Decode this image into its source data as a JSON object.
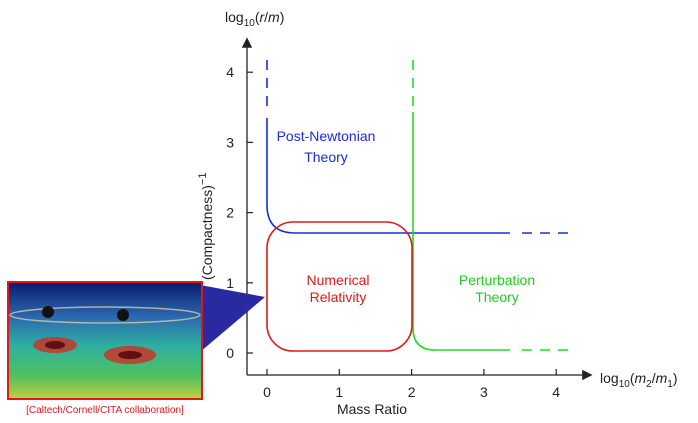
{
  "axes": {
    "x_ticks": [
      0,
      1,
      2,
      3,
      4
    ],
    "y_ticks": [
      0,
      1,
      2,
      3,
      4
    ],
    "x_title": [
      "log",
      "10",
      "(",
      "m",
      "2",
      "/",
      "m",
      "1",
      ")"
    ],
    "x_subtitle": "Mass Ratio",
    "y_title": [
      "log",
      "10",
      "(",
      "r",
      "/",
      "m",
      ")"
    ],
    "y_subtitle": [
      "(Compactness)",
      "−1"
    ]
  },
  "regions": {
    "post_newtonian": [
      "Post-Newtonian",
      "Theory"
    ],
    "numerical_relativity": [
      "Numerical",
      "Relativity"
    ],
    "perturbation": [
      "Perturbation",
      "Theory"
    ]
  },
  "image_caption": "[Caltech/Cornell/CITA collaboration]"
}
